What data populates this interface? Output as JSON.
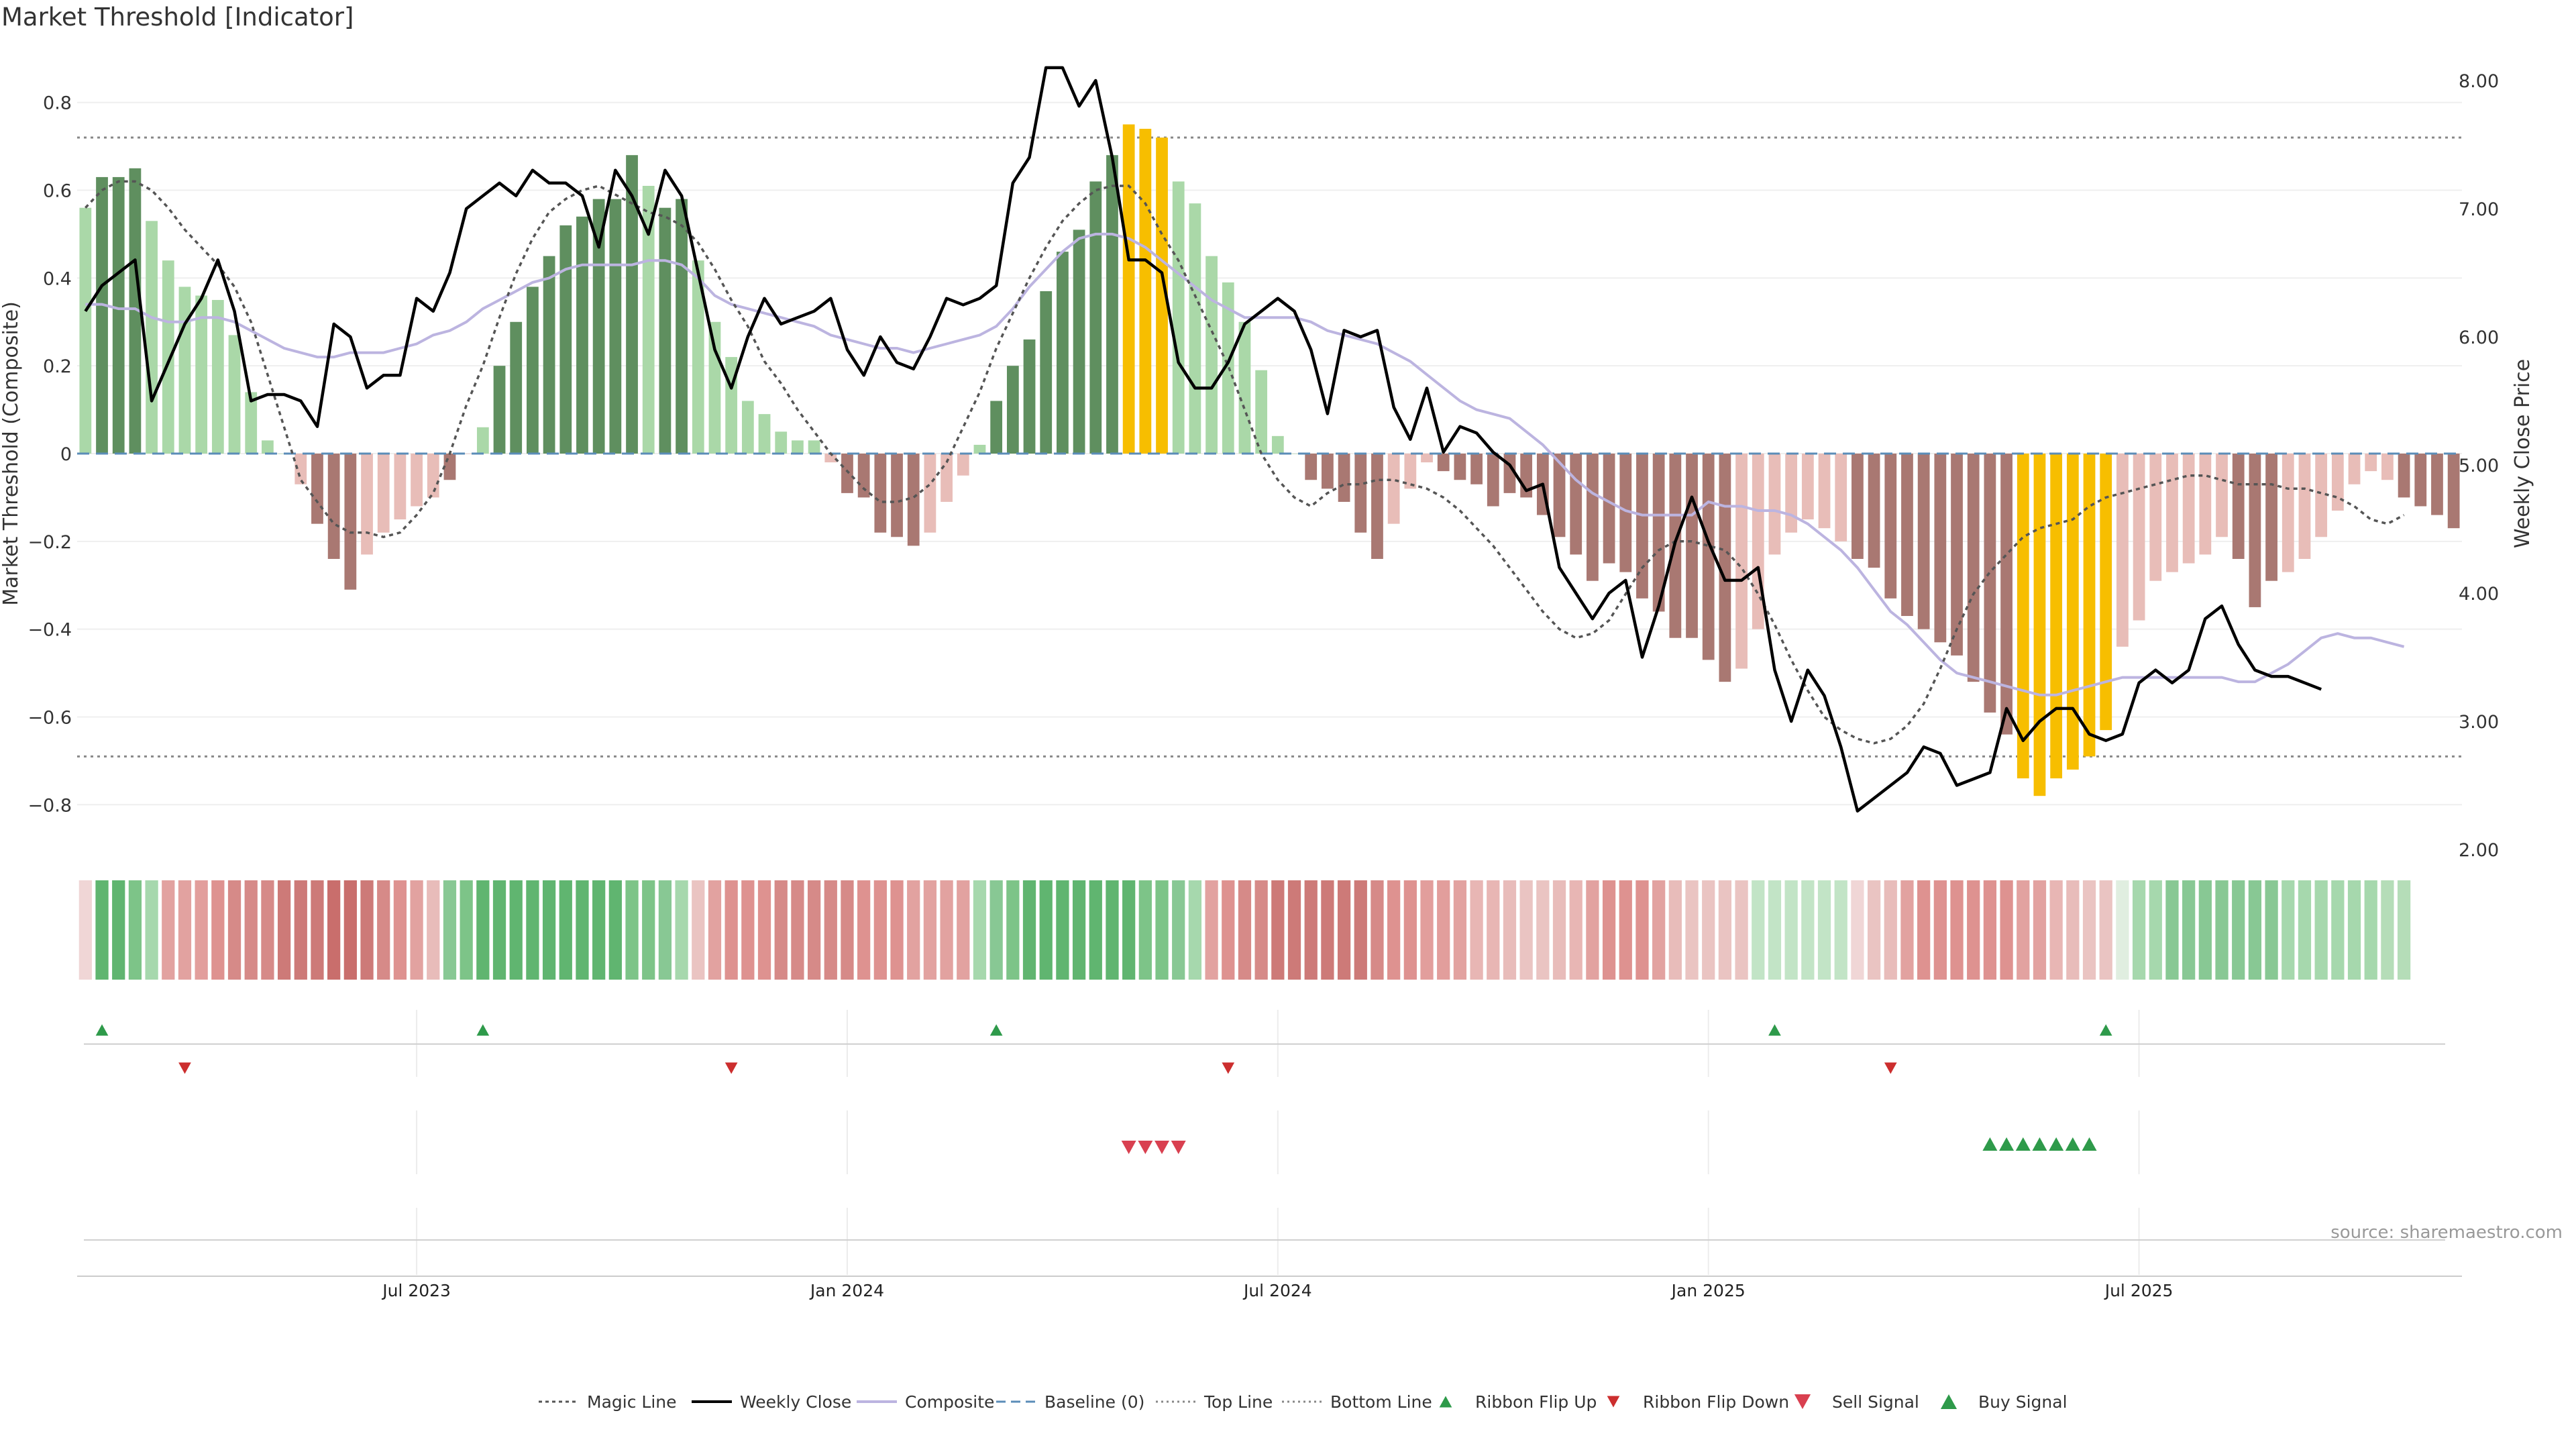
{
  "title": "Market Threshold [Indicator]",
  "source": "source: sharemaestro.com",
  "chart_data": {
    "type": "bar",
    "title": "Market Threshold [Indicator]",
    "ylabel": "Market Threshold (Composite)",
    "y2label": "Weekly Close Price",
    "ylim": [
      -0.85,
      0.85
    ],
    "y2lim": [
      2.0,
      8.0
    ],
    "yticks": [
      "0.8",
      "0.6",
      "0.4",
      "0.2",
      "0",
      "−0.2",
      "−0.4",
      "−0.6",
      "−0.8"
    ],
    "y2ticks": [
      "8.00",
      "7.00",
      "6.00",
      "5.00",
      "4.00",
      "3.00",
      "2.00"
    ],
    "xtick_labels": [
      "Jul 2023",
      "Jan 2024",
      "Jul 2024",
      "Jan 2025",
      "Jul 2025"
    ],
    "xtick_index": [
      20,
      46,
      72,
      98,
      124
    ],
    "top_line": 0.72,
    "bottom_line": -0.69,
    "composite": [
      0.56,
      0.63,
      0.63,
      0.65,
      0.53,
      0.44,
      0.38,
      0.36,
      0.35,
      0.27,
      0.14,
      0.03,
      0,
      -0.07,
      -0.16,
      -0.24,
      -0.31,
      -0.23,
      -0.18,
      -0.15,
      -0.12,
      -0.1,
      -0.06,
      0,
      0.06,
      0.2,
      0.3,
      0.38,
      0.45,
      0.52,
      0.54,
      0.58,
      0.58,
      0.68,
      0.61,
      0.56,
      0.58,
      0.44,
      0.3,
      0.22,
      0.12,
      0.09,
      0.05,
      0.03,
      0.03,
      -0.02,
      -0.09,
      -0.1,
      -0.18,
      -0.19,
      -0.21,
      -0.18,
      -0.11,
      -0.05,
      0.02,
      0.12,
      0.2,
      0.26,
      0.37,
      0.46,
      0.51,
      0.62,
      0.68,
      0.75,
      0.74,
      0.72,
      0.62,
      0.57,
      0.45,
      0.39,
      0.3,
      0.19,
      0.04,
      0,
      -0.06,
      -0.08,
      -0.11,
      -0.18,
      -0.24,
      -0.16,
      -0.08,
      -0.02,
      -0.04,
      -0.06,
      -0.07,
      -0.12,
      -0.09,
      -0.1,
      -0.14,
      -0.19,
      -0.23,
      -0.29,
      -0.25,
      -0.27,
      -0.33,
      -0.36,
      -0.42,
      -0.42,
      -0.47,
      -0.52,
      -0.49,
      -0.4,
      -0.23,
      -0.18,
      -0.15,
      -0.17,
      -0.2,
      -0.24,
      -0.26,
      -0.33,
      -0.37,
      -0.4,
      -0.43,
      -0.46,
      -0.52,
      -0.59,
      -0.64,
      -0.74,
      -0.78,
      -0.74,
      -0.72,
      -0.69,
      -0.63,
      -0.44,
      -0.38,
      -0.29,
      -0.27,
      -0.25,
      -0.23,
      -0.19,
      -0.24,
      -0.35,
      -0.29,
      -0.27,
      -0.24,
      -0.19,
      -0.13,
      -0.07,
      -0.04,
      -0.06,
      -0.1,
      -0.12,
      -0.14,
      -0.17
    ],
    "bar_colors": [
      "#aad8a8",
      "#5f8f5f",
      "#5f8f5f",
      "#5f8f5f",
      "#aad8a8",
      "#aad8a8",
      "#aad8a8",
      "#aad8a8",
      "#aad8a8",
      "#aad8a8",
      "#aad8a8",
      "#aad8a8",
      "#aad8a8",
      "#e8bdb8",
      "#a97872",
      "#a97872",
      "#a97872",
      "#e8bdb8",
      "#e8bdb8",
      "#e8bdb8",
      "#e8bdb8",
      "#e8bdb8",
      "#a97872",
      "#e8bdb8",
      "#aad8a8",
      "#5f8f5f",
      "#5f8f5f",
      "#5f8f5f",
      "#5f8f5f",
      "#5f8f5f",
      "#5f8f5f",
      "#5f8f5f",
      "#5f8f5f",
      "#5f8f5f",
      "#aad8a8",
      "#5f8f5f",
      "#5f8f5f",
      "#aad8a8",
      "#aad8a8",
      "#aad8a8",
      "#aad8a8",
      "#aad8a8",
      "#aad8a8",
      "#aad8a8",
      "#aad8a8",
      "#e8bdb8",
      "#a97872",
      "#a97872",
      "#a97872",
      "#a97872",
      "#a97872",
      "#e8bdb8",
      "#e8bdb8",
      "#e8bdb8",
      "#aad8a8",
      "#5f8f5f",
      "#5f8f5f",
      "#5f8f5f",
      "#5f8f5f",
      "#5f8f5f",
      "#5f8f5f",
      "#5f8f5f",
      "#5f8f5f",
      "#f7be00",
      "#f7be00",
      "#f7be00",
      "#aad8a8",
      "#aad8a8",
      "#aad8a8",
      "#aad8a8",
      "#aad8a8",
      "#aad8a8",
      "#aad8a8",
      "#aad8a8",
      "#a97872",
      "#a97872",
      "#a97872",
      "#a97872",
      "#a97872",
      "#e8bdb8",
      "#e8bdb8",
      "#e8bdb8",
      "#a97872",
      "#a97872",
      "#a97872",
      "#a97872",
      "#a97872",
      "#a97872",
      "#a97872",
      "#a97872",
      "#a97872",
      "#a97872",
      "#a97872",
      "#a97872",
      "#a97872",
      "#a97872",
      "#a97872",
      "#a97872",
      "#a97872",
      "#a97872",
      "#e8bdb8",
      "#e8bdb8",
      "#e8bdb8",
      "#e8bdb8",
      "#e8bdb8",
      "#e8bdb8",
      "#e8bdb8",
      "#a97872",
      "#a97872",
      "#a97872",
      "#a97872",
      "#a97872",
      "#a97872",
      "#a97872",
      "#a97872",
      "#a97872",
      "#a97872",
      "#f7be00",
      "#f7be00",
      "#f7be00",
      "#f7be00",
      "#f7be00",
      "#f7be00",
      "#e8bdb8",
      "#e8bdb8",
      "#e8bdb8",
      "#e8bdb8",
      "#e8bdb8",
      "#e8bdb8",
      "#e8bdb8",
      "#a97872",
      "#a97872",
      "#a97872",
      "#e8bdb8",
      "#e8bdb8",
      "#e8bdb8",
      "#e8bdb8",
      "#e8bdb8",
      "#e8bdb8",
      "#e8bdb8",
      "#a97872",
      "#a97872",
      "#a97872",
      "#a97872",
      "#a97872"
    ],
    "weekly_close": [
      6.2,
      6.4,
      6.5,
      6.6,
      5.5,
      5.8,
      6.1,
      6.3,
      6.6,
      6.2,
      5.5,
      5.55,
      5.55,
      5.5,
      5.3,
      6.1,
      6.0,
      5.6,
      5.7,
      5.7,
      6.3,
      6.2,
      6.5,
      7.0,
      7.1,
      7.2,
      7.1,
      7.3,
      7.2,
      7.2,
      7.1,
      6.7,
      7.3,
      7.1,
      6.8,
      7.3,
      7.1,
      6.5,
      5.9,
      5.6,
      6.0,
      6.3,
      6.1,
      6.15,
      6.2,
      6.3,
      5.9,
      5.7,
      6.0,
      5.8,
      5.75,
      6.0,
      6.3,
      6.25,
      6.3,
      6.4,
      7.2,
      7.4,
      8.1,
      8.1,
      7.8,
      8.0,
      7.4,
      6.6,
      6.6,
      6.5,
      5.8,
      5.6,
      5.6,
      5.8,
      6.1,
      6.2,
      6.3,
      6.2,
      5.9,
      5.4,
      6.05,
      6.0,
      6.05,
      5.45,
      5.2,
      5.6,
      5.1,
      5.3,
      5.25,
      5.1,
      5.0,
      4.8,
      4.85,
      4.2,
      4.0,
      3.8,
      4.0,
      4.1,
      3.5,
      3.9,
      4.4,
      4.75,
      4.4,
      4.1,
      4.1,
      4.2,
      3.4,
      3.0,
      3.4,
      3.2,
      2.8,
      2.3,
      2.4,
      2.5,
      2.6,
      2.8,
      2.75,
      2.5,
      2.55,
      2.6,
      3.1,
      2.85,
      3.0,
      3.1,
      3.1,
      2.9,
      2.85,
      2.9,
      3.3,
      3.4,
      3.3,
      3.4,
      3.8,
      3.9,
      3.6,
      3.4,
      3.35,
      3.35,
      3.3,
      3.25
    ],
    "composite_ma": [
      0.34,
      0.34,
      0.33,
      0.33,
      0.31,
      0.3,
      0.3,
      0.31,
      0.31,
      0.3,
      0.28,
      0.26,
      0.24,
      0.23,
      0.22,
      0.22,
      0.23,
      0.23,
      0.23,
      0.24,
      0.25,
      0.27,
      0.28,
      0.3,
      0.33,
      0.35,
      0.37,
      0.39,
      0.4,
      0.42,
      0.43,
      0.43,
      0.43,
      0.43,
      0.44,
      0.44,
      0.43,
      0.4,
      0.36,
      0.34,
      0.33,
      0.32,
      0.31,
      0.3,
      0.29,
      0.27,
      0.26,
      0.25,
      0.24,
      0.24,
      0.23,
      0.24,
      0.25,
      0.26,
      0.27,
      0.29,
      0.33,
      0.38,
      0.42,
      0.46,
      0.49,
      0.5,
      0.5,
      0.49,
      0.47,
      0.44,
      0.41,
      0.38,
      0.35,
      0.33,
      0.31,
      0.31,
      0.31,
      0.31,
      0.3,
      0.28,
      0.27,
      0.26,
      0.25,
      0.23,
      0.21,
      0.18,
      0.15,
      0.12,
      0.1,
      0.09,
      0.08,
      0.05,
      0.02,
      -0.02,
      -0.06,
      -0.09,
      -0.11,
      -0.13,
      -0.14,
      -0.14,
      -0.14,
      -0.14,
      -0.11,
      -0.12,
      -0.12,
      -0.13,
      -0.13,
      -0.14,
      -0.16,
      -0.19,
      -0.22,
      -0.26,
      -0.31,
      -0.36,
      -0.39,
      -0.43,
      -0.47,
      -0.5,
      -0.51,
      -0.52,
      -0.53,
      -0.54,
      -0.55,
      -0.55,
      -0.54,
      -0.53,
      -0.52,
      -0.51,
      -0.51,
      -0.51,
      -0.51,
      -0.51,
      -0.51,
      -0.51,
      -0.52,
      -0.52,
      -0.5,
      -0.48,
      -0.45,
      -0.42,
      -0.41,
      -0.42,
      -0.42,
      -0.43,
      -0.44
    ],
    "magic_line": [
      0.56,
      0.6,
      0.62,
      0.62,
      0.6,
      0.56,
      0.51,
      0.47,
      0.43,
      0.38,
      0.3,
      0.18,
      0.06,
      -0.06,
      -0.11,
      -0.16,
      -0.18,
      -0.18,
      -0.19,
      -0.18,
      -0.14,
      -0.09,
      0.0,
      0.11,
      0.2,
      0.31,
      0.41,
      0.49,
      0.55,
      0.58,
      0.6,
      0.61,
      0.59,
      0.57,
      0.55,
      0.54,
      0.52,
      0.48,
      0.42,
      0.35,
      0.29,
      0.21,
      0.16,
      0.1,
      0.05,
      0.0,
      -0.04,
      -0.08,
      -0.11,
      -0.11,
      -0.1,
      -0.07,
      -0.02,
      0.06,
      0.14,
      0.24,
      0.32,
      0.4,
      0.47,
      0.53,
      0.57,
      0.6,
      0.61,
      0.61,
      0.57,
      0.5,
      0.44,
      0.36,
      0.28,
      0.2,
      0.1,
      0.0,
      -0.06,
      -0.1,
      -0.12,
      -0.09,
      -0.07,
      -0.07,
      -0.06,
      -0.06,
      -0.07,
      -0.08,
      -0.1,
      -0.13,
      -0.17,
      -0.21,
      -0.26,
      -0.31,
      -0.36,
      -0.4,
      -0.42,
      -0.41,
      -0.38,
      -0.32,
      -0.26,
      -0.22,
      -0.2,
      -0.2,
      -0.21,
      -0.22,
      -0.26,
      -0.32,
      -0.39,
      -0.47,
      -0.54,
      -0.6,
      -0.63,
      -0.65,
      -0.66,
      -0.65,
      -0.62,
      -0.57,
      -0.49,
      -0.4,
      -0.32,
      -0.27,
      -0.23,
      -0.19,
      -0.17,
      -0.16,
      -0.15,
      -0.12,
      -0.1,
      -0.09,
      -0.08,
      -0.07,
      -0.06,
      -0.05,
      -0.05,
      -0.06,
      -0.07,
      -0.07,
      -0.07,
      -0.08,
      -0.08,
      -0.09,
      -0.1,
      -0.12,
      -0.15,
      -0.16,
      -0.14
    ],
    "ribbon_colors": [
      "#f0d6d6",
      "#60b570",
      "#60b570",
      "#7dc488",
      "#a6d8ad",
      "#e2a2a0",
      "#e2a2a0",
      "#e29e9c",
      "#de9290",
      "#d68a88",
      "#d68a88",
      "#d68a88",
      "#cd7a78",
      "#cd7a78",
      "#cd7a78",
      "#c96e6c",
      "#c96e6c",
      "#cd7a78",
      "#d68a88",
      "#de9290",
      "#e2a2a0",
      "#e8bcba",
      "#88c894",
      "#7dc488",
      "#60b570",
      "#60b570",
      "#60b570",
      "#60b570",
      "#60b570",
      "#60b570",
      "#60b570",
      "#60b570",
      "#60b570",
      "#7dc488",
      "#7dc488",
      "#88c894",
      "#a6d8ad",
      "#eac4c2",
      "#e2a2a0",
      "#de9290",
      "#de9290",
      "#de9290",
      "#d68a88",
      "#d68a88",
      "#d68a88",
      "#d68a88",
      "#d68a88",
      "#de9290",
      "#de9290",
      "#de9290",
      "#e2a2a0",
      "#e2a2a0",
      "#e2a2a0",
      "#e2a2a0",
      "#a6d8ad",
      "#88c894",
      "#7dc488",
      "#60b570",
      "#60b570",
      "#60b570",
      "#60b570",
      "#60b570",
      "#60b570",
      "#60b570",
      "#7dc488",
      "#7dc488",
      "#88c894",
      "#a6d8ad",
      "#e2a2a0",
      "#de9290",
      "#d68a88",
      "#d68a88",
      "#cd7a78",
      "#cd7a78",
      "#cd7a78",
      "#cd7a78",
      "#cd7a78",
      "#cd7a78",
      "#d68a88",
      "#de9290",
      "#de9290",
      "#e29e9c",
      "#e29e9c",
      "#e2a2a0",
      "#e8b6b4",
      "#e8b6b4",
      "#e8bcba",
      "#eac4c2",
      "#eac4c2",
      "#e8bcba",
      "#e8b6b4",
      "#e2a2a0",
      "#de9290",
      "#de9290",
      "#de9290",
      "#e2a2a0",
      "#e8bcba",
      "#eac4c2",
      "#eac4c2",
      "#eac4c2",
      "#eac4c2",
      "#c2e4c6",
      "#c2e4c6",
      "#c2e4c6",
      "#c2e4c6",
      "#c2e4c6",
      "#c2e4c6",
      "#f0d6d6",
      "#eac4c2",
      "#e8bcba",
      "#e2a2a0",
      "#de9290",
      "#de9290",
      "#de9290",
      "#de9290",
      "#de9290",
      "#de9290",
      "#e2a2a0",
      "#e2a2a0",
      "#e8b6b4",
      "#e8bcba",
      "#eac4c2",
      "#eac4c2",
      "#e0eee0",
      "#a6d8ad",
      "#a6d8ad",
      "#88c894",
      "#88c894",
      "#88c894",
      "#88c894",
      "#88c894",
      "#88c894",
      "#88c894",
      "#a6d8ad",
      "#a6d8ad",
      "#a6d8ad",
      "#a6d8ad",
      "#a6d8ad",
      "#a6d8ad",
      "#b5ddb8",
      "#b5ddb8"
    ],
    "ribbon_flip_up": [
      1,
      24,
      55,
      102,
      122
    ],
    "ribbon_flip_down": [
      6,
      39,
      69,
      109
    ],
    "sell_signal": [
      63,
      64,
      65,
      66
    ],
    "buy_signal": [
      115,
      116,
      117,
      118,
      119,
      120,
      121
    ],
    "legend": [
      "Magic Line",
      "Weekly Close",
      "Composite",
      "Baseline (0)",
      "Top Line",
      "Bottom Line",
      "Ribbon Flip Up",
      "Ribbon Flip Down",
      "Sell Signal",
      "Buy Signal"
    ],
    "legend_placement": "bottom-center",
    "grid": true
  },
  "colors": {
    "magic_line": "#555555",
    "weekly_close": "#000000",
    "composite": "#bcb4e0",
    "baseline": "#5b8db8",
    "ref_line": "#888888",
    "flip_up": "#2e9a4a",
    "flip_down": "#cc2e2e",
    "sell": "#d94050",
    "buy": "#2e9a4a"
  }
}
